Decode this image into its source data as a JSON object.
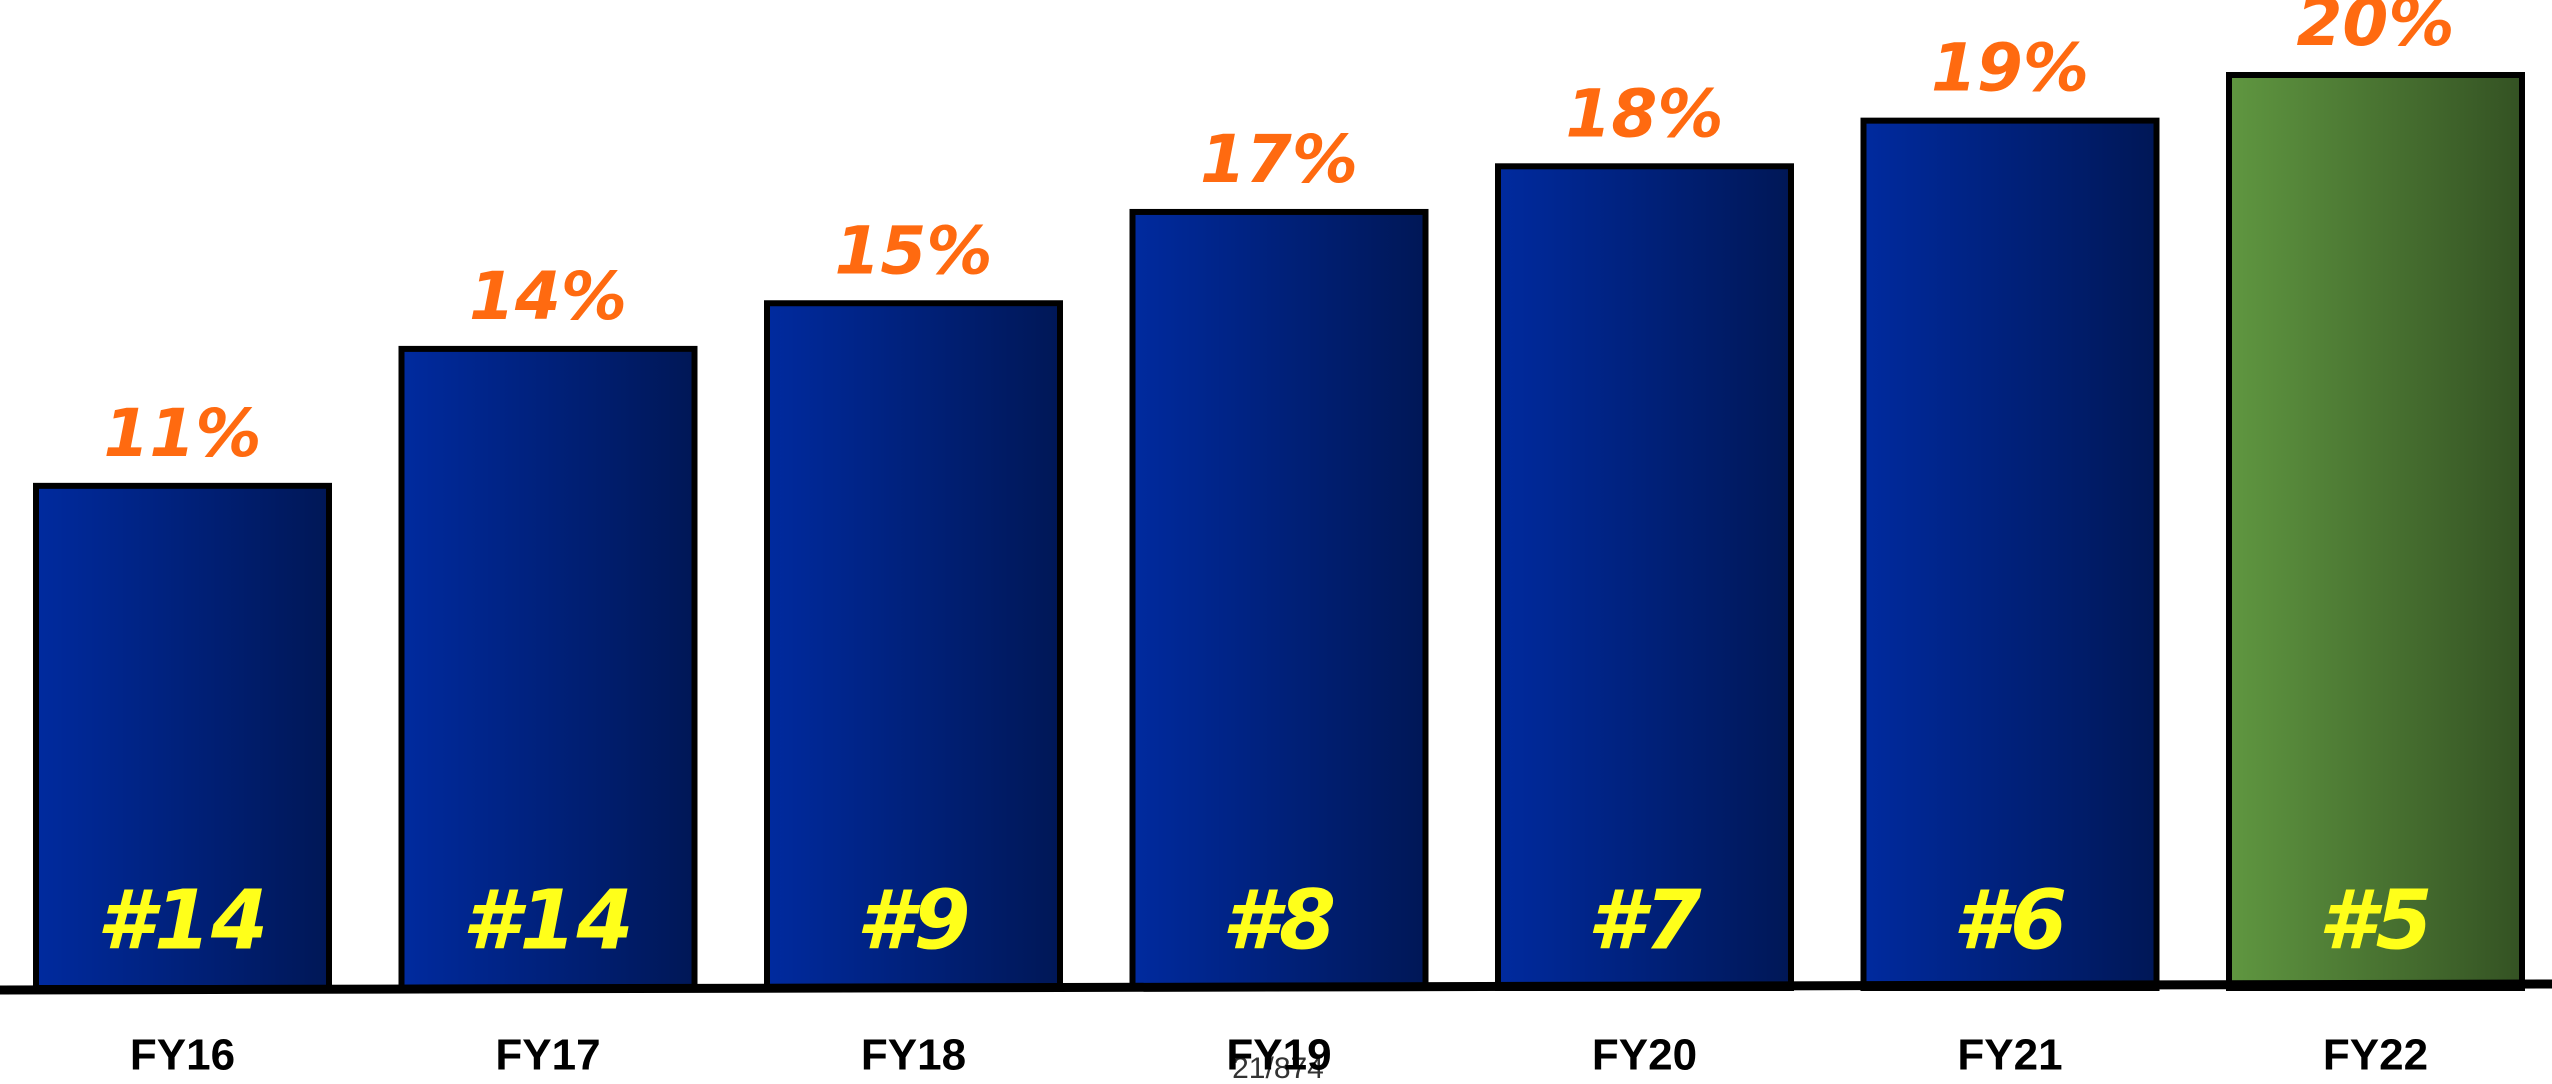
{
  "chart_data": {
    "type": "bar",
    "categories": [
      "FY16",
      "FY17",
      "FY18",
      "FY19",
      "FY20",
      "FY21",
      "FY22"
    ],
    "values": [
      11,
      14,
      15,
      17,
      18,
      19,
      20
    ],
    "value_labels": [
      "11%",
      "14%",
      "15%",
      "17%",
      "18%",
      "19%",
      "20%"
    ],
    "rank_labels": [
      "#14",
      "#14",
      "#9",
      "#8",
      "#7",
      "#6",
      "#5"
    ],
    "colors": [
      "#002a9e",
      "#002a9e",
      "#002a9e",
      "#002a9e",
      "#002a9e",
      "#002a9e",
      "#5f9640"
    ],
    "value_label_color": "#ff6a10",
    "rank_label_color": "#ffff1a",
    "footer": "21/874"
  }
}
